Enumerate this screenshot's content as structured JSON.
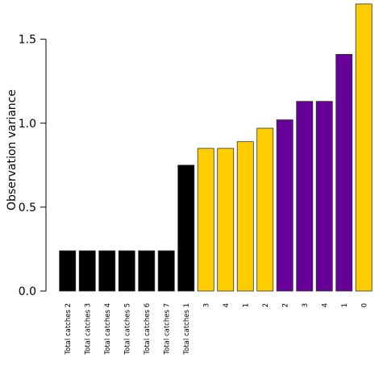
{
  "chart_data": {
    "type": "bar",
    "ylabel": "Observation variance",
    "ylim": [
      0,
      1.7
    ],
    "yticks": [
      0.0,
      0.5,
      1.0,
      1.5
    ],
    "ytick_labels": [
      "0.0",
      "0.5",
      "1.0",
      "1.5"
    ],
    "grid": false,
    "categories": [
      "Total catches 2",
      "Total catches 3",
      "Total catches 4",
      "Total catches 5",
      "Total catches 6",
      "Total catches 7",
      "Total catches 1",
      "3",
      "4",
      "1",
      "2",
      "2",
      "3",
      "4",
      "1",
      "0"
    ],
    "values": [
      0.24,
      0.24,
      0.24,
      0.24,
      0.24,
      0.24,
      0.75,
      0.85,
      0.85,
      0.89,
      0.97,
      1.02,
      1.13,
      1.13,
      1.41,
      1.71
    ],
    "bar_colors": [
      "#000000",
      "#000000",
      "#000000",
      "#000000",
      "#000000",
      "#000000",
      "#000000",
      "#ffcc00",
      "#ffcc00",
      "#ffcc00",
      "#ffcc00",
      "#660099",
      "#660099",
      "#660099",
      "#660099",
      "#ffcc00"
    ]
  }
}
